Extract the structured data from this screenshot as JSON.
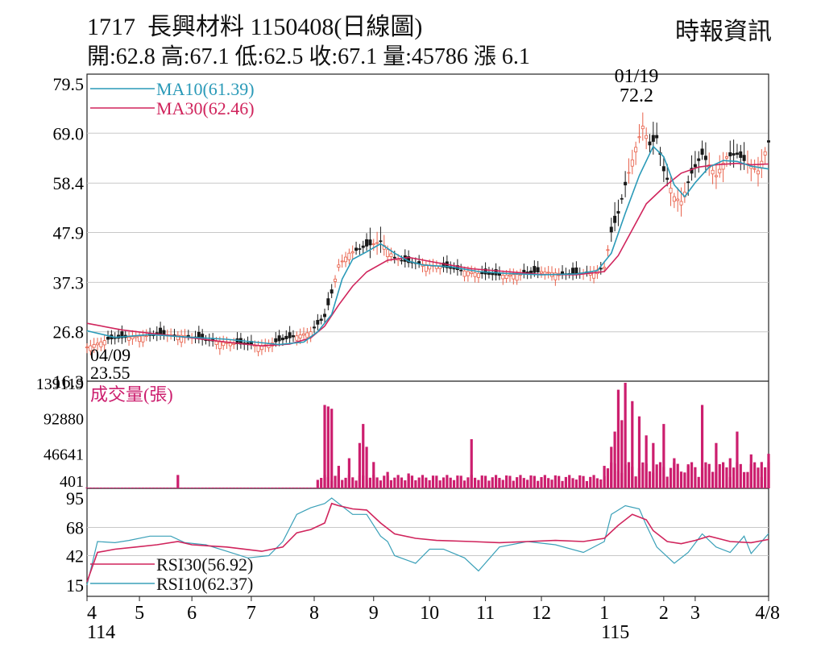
{
  "header": {
    "title": "1717  長興材料 1150408(日線圖)",
    "source": "時報資訊",
    "stats": "開:62.8 高:67.1 低:62.5 收:67.1 量:45786 漲 6.1"
  },
  "colors": {
    "ma10": "#2a9ab8",
    "ma30": "#d0245c",
    "volume": "#cc1e6e",
    "up_candle": "#e8604a",
    "down_candle": "#1a1a1a",
    "grid": "#c8c8c8",
    "rsi30": "#d0245c",
    "rsi10": "#3aa0b8"
  },
  "chart_data": [
    {
      "type": "candlestick",
      "panel": "price",
      "ylim": [
        16.3,
        79.5
      ],
      "y_ticks": [
        "79.5",
        "69.0",
        "58.4",
        "47.9",
        "37.3",
        "26.8",
        "16.3"
      ],
      "legend": [
        {
          "key": "ma10",
          "label": "MA10(61.39)"
        },
        {
          "key": "ma30",
          "label": "MA30(62.46)"
        }
      ],
      "annotations": [
        {
          "date": "01/19",
          "value": "72.2"
        },
        {
          "date": "04/09",
          "value": "23.55"
        }
      ],
      "ma10": [
        [
          0,
          27.0
        ],
        [
          8,
          25.6
        ],
        [
          18,
          26.2
        ],
        [
          28,
          25.7
        ],
        [
          40,
          25.2
        ],
        [
          55,
          24.1
        ],
        [
          62,
          24.6
        ],
        [
          66,
          26.8
        ],
        [
          70,
          30.5
        ],
        [
          73,
          38.0
        ],
        [
          76,
          42.2
        ],
        [
          80,
          43.8
        ],
        [
          84,
          45.5
        ],
        [
          88,
          43.5
        ],
        [
          92,
          41.8
        ],
        [
          96,
          41.0
        ],
        [
          104,
          40.6
        ],
        [
          112,
          39.6
        ],
        [
          120,
          39.2
        ],
        [
          130,
          38.9
        ],
        [
          140,
          39.1
        ],
        [
          146,
          39.8
        ],
        [
          150,
          43.5
        ],
        [
          154,
          52.0
        ],
        [
          158,
          60.0
        ],
        [
          162,
          66.2
        ],
        [
          165,
          64.0
        ],
        [
          168,
          58.0
        ],
        [
          171,
          55.5
        ],
        [
          174,
          58.5
        ],
        [
          178,
          61.8
        ],
        [
          182,
          63.2
        ],
        [
          186,
          63.0
        ],
        [
          190,
          62.0
        ],
        [
          195,
          61.4
        ]
      ],
      "ma30": [
        [
          0,
          28.6
        ],
        [
          10,
          27.2
        ],
        [
          20,
          26.3
        ],
        [
          30,
          25.5
        ],
        [
          40,
          24.6
        ],
        [
          50,
          23.8
        ],
        [
          58,
          24.2
        ],
        [
          64,
          25.5
        ],
        [
          68,
          28.0
        ],
        [
          72,
          32.5
        ],
        [
          76,
          36.5
        ],
        [
          80,
          39.5
        ],
        [
          86,
          42.0
        ],
        [
          92,
          42.6
        ],
        [
          100,
          41.5
        ],
        [
          110,
          40.2
        ],
        [
          120,
          39.6
        ],
        [
          130,
          39.0
        ],
        [
          140,
          38.9
        ],
        [
          148,
          39.6
        ],
        [
          152,
          43.0
        ],
        [
          156,
          48.5
        ],
        [
          160,
          54.0
        ],
        [
          165,
          57.5
        ],
        [
          170,
          60.5
        ],
        [
          175,
          61.8
        ],
        [
          180,
          62.3
        ],
        [
          186,
          62.6
        ],
        [
          190,
          62.3
        ],
        [
          195,
          62.46
        ]
      ],
      "close": [
        [
          0,
          23.55
        ],
        [
          6,
          25.2
        ],
        [
          14,
          25.8
        ],
        [
          22,
          26.2
        ],
        [
          28,
          26.0
        ],
        [
          34,
          25.0
        ],
        [
          42,
          24.3
        ],
        [
          50,
          23.8
        ],
        [
          58,
          25.5
        ],
        [
          64,
          26.8
        ],
        [
          68,
          30.0
        ],
        [
          70,
          35.0
        ],
        [
          72,
          41.0
        ],
        [
          75,
          43.5
        ],
        [
          80,
          45.0
        ],
        [
          84,
          46.0
        ],
        [
          88,
          42.5
        ],
        [
          92,
          41.5
        ],
        [
          100,
          40.8
        ],
        [
          106,
          40.0
        ],
        [
          112,
          39.2
        ],
        [
          118,
          38.8
        ],
        [
          124,
          39.0
        ],
        [
          130,
          39.6
        ],
        [
          138,
          39.0
        ],
        [
          144,
          39.4
        ],
        [
          148,
          40.5
        ],
        [
          150,
          48.0
        ],
        [
          152,
          52.0
        ],
        [
          154,
          58.0
        ],
        [
          157,
          66.0
        ],
        [
          159,
          70.5
        ],
        [
          161,
          66.5
        ],
        [
          163,
          68.0
        ],
        [
          165,
          61.0
        ],
        [
          168,
          55.5
        ],
        [
          170,
          54.5
        ],
        [
          173,
          60.5
        ],
        [
          176,
          64.5
        ],
        [
          180,
          60.0
        ],
        [
          183,
          64.0
        ],
        [
          186,
          64.5
        ],
        [
          189,
          62.5
        ],
        [
          192,
          61.0
        ],
        [
          195,
          67.1
        ]
      ]
    },
    {
      "type": "bar",
      "panel": "volume",
      "label": "成交量(張)",
      "ylim": [
        401,
        139119
      ],
      "y_ticks": [
        "139119",
        "92880",
        "46641",
        "401"
      ],
      "values": [
        [
          26,
          18000
        ],
        [
          68,
          110000
        ],
        [
          69,
          108000
        ],
        [
          70,
          105000
        ],
        [
          72,
          30000
        ],
        [
          75,
          40000
        ],
        [
          78,
          60000
        ],
        [
          79,
          85000
        ],
        [
          80,
          55000
        ],
        [
          82,
          35000
        ],
        [
          86,
          22000
        ],
        [
          92,
          20000
        ],
        [
          110,
          65000
        ],
        [
          118,
          12000
        ],
        [
          148,
          30000
        ],
        [
          150,
          55000
        ],
        [
          151,
          75000
        ],
        [
          152,
          130000
        ],
        [
          153,
          90000
        ],
        [
          154,
          139119
        ],
        [
          156,
          115000
        ],
        [
          158,
          95000
        ],
        [
          160,
          70000
        ],
        [
          162,
          60000
        ],
        [
          165,
          85000
        ],
        [
          168,
          40000
        ],
        [
          172,
          30000
        ],
        [
          176,
          110000
        ],
        [
          180,
          60000
        ],
        [
          184,
          40000
        ],
        [
          186,
          75000
        ],
        [
          190,
          45000
        ],
        [
          193,
          35000
        ],
        [
          195,
          45786
        ]
      ]
    },
    {
      "type": "line",
      "panel": "rsi",
      "ylim": [
        15,
        95
      ],
      "y_ticks": [
        "95",
        "68",
        "42",
        "15"
      ],
      "legend": [
        {
          "key": "rsi30",
          "label": "RSI30(56.92)"
        },
        {
          "key": "rsi10",
          "label": "RSI10(62.37)"
        }
      ],
      "rsi30": [
        [
          0,
          18
        ],
        [
          3,
          45
        ],
        [
          8,
          48
        ],
        [
          14,
          50
        ],
        [
          20,
          52
        ],
        [
          26,
          55
        ],
        [
          30,
          52
        ],
        [
          40,
          50
        ],
        [
          50,
          46
        ],
        [
          56,
          50
        ],
        [
          60,
          63
        ],
        [
          64,
          66
        ],
        [
          68,
          72
        ],
        [
          70,
          90
        ],
        [
          72,
          88
        ],
        [
          76,
          85
        ],
        [
          80,
          84
        ],
        [
          84,
          72
        ],
        [
          88,
          62
        ],
        [
          94,
          58
        ],
        [
          100,
          56
        ],
        [
          110,
          55
        ],
        [
          118,
          54
        ],
        [
          126,
          55
        ],
        [
          134,
          56
        ],
        [
          142,
          55
        ],
        [
          148,
          58
        ],
        [
          152,
          70
        ],
        [
          156,
          80
        ],
        [
          160,
          75
        ],
        [
          162,
          65
        ],
        [
          166,
          55
        ],
        [
          170,
          53
        ],
        [
          174,
          56
        ],
        [
          178,
          60
        ],
        [
          184,
          55
        ],
        [
          190,
          54
        ],
        [
          195,
          56.92
        ]
      ],
      "rsi10": [
        [
          0,
          15
        ],
        [
          3,
          55
        ],
        [
          8,
          54
        ],
        [
          12,
          56
        ],
        [
          18,
          60
        ],
        [
          24,
          60
        ],
        [
          28,
          54
        ],
        [
          34,
          52
        ],
        [
          40,
          46
        ],
        [
          46,
          40
        ],
        [
          52,
          42
        ],
        [
          56,
          55
        ],
        [
          60,
          80
        ],
        [
          64,
          86
        ],
        [
          68,
          90
        ],
        [
          70,
          95
        ],
        [
          72,
          90
        ],
        [
          76,
          80
        ],
        [
          80,
          80
        ],
        [
          84,
          60
        ],
        [
          86,
          55
        ],
        [
          88,
          42
        ],
        [
          94,
          35
        ],
        [
          98,
          48
        ],
        [
          102,
          48
        ],
        [
          108,
          40
        ],
        [
          112,
          28
        ],
        [
          118,
          50
        ],
        [
          126,
          55
        ],
        [
          134,
          52
        ],
        [
          142,
          45
        ],
        [
          148,
          55
        ],
        [
          150,
          80
        ],
        [
          154,
          88
        ],
        [
          158,
          85
        ],
        [
          160,
          70
        ],
        [
          163,
          50
        ],
        [
          168,
          35
        ],
        [
          172,
          45
        ],
        [
          176,
          62
        ],
        [
          180,
          50
        ],
        [
          184,
          45
        ],
        [
          188,
          60
        ],
        [
          190,
          44
        ],
        [
          195,
          62.37
        ]
      ]
    }
  ],
  "x_axis": {
    "labels": [
      {
        "i": 0,
        "text": "4"
      },
      {
        "i": 15,
        "text": "5"
      },
      {
        "i": 30,
        "text": "6"
      },
      {
        "i": 47,
        "text": "7"
      },
      {
        "i": 65,
        "text": "8"
      },
      {
        "i": 82,
        "text": "9"
      },
      {
        "i": 98,
        "text": "10"
      },
      {
        "i": 114,
        "text": "11"
      },
      {
        "i": 130,
        "text": "12"
      },
      {
        "i": 148,
        "text": "1"
      },
      {
        "i": 165,
        "text": "2"
      },
      {
        "i": 174,
        "text": "3"
      },
      {
        "i": 195,
        "text": "4/8"
      }
    ],
    "year_labels": [
      {
        "i": 0,
        "text": "114"
      },
      {
        "i": 148,
        "text": "115"
      }
    ]
  }
}
